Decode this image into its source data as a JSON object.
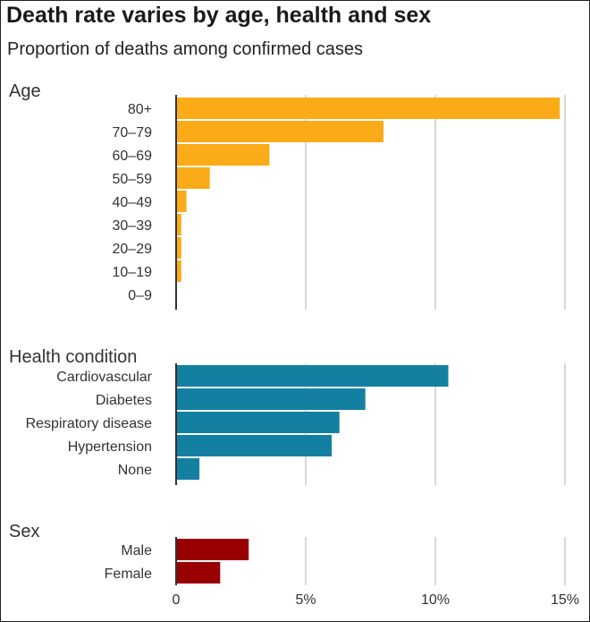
{
  "title": "Death rate varies by age, health and sex",
  "subtitle": "Proportion of deaths among confirmed cases",
  "colors": {
    "age": "#FBAB18",
    "health": "#1380A1",
    "sex": "#990000",
    "grid": "#cccccc",
    "axis": "#333333"
  },
  "chart_data": {
    "type": "bar",
    "orientation": "horizontal",
    "unit": "%",
    "xlim": [
      0,
      15
    ],
    "x_ticks": [
      {
        "value": 0,
        "label": "0"
      },
      {
        "value": 5,
        "label": "5%"
      },
      {
        "value": 10,
        "label": "10%"
      },
      {
        "value": 15,
        "label": "15%"
      }
    ],
    "grid": true,
    "groups": [
      {
        "key": "age",
        "heading": "Age",
        "categories": [
          "80+",
          "70–79",
          "60–69",
          "50–59",
          "40–49",
          "30–39",
          "20–29",
          "10–19",
          "0–9"
        ],
        "values": [
          14.8,
          8.0,
          3.6,
          1.3,
          0.4,
          0.2,
          0.2,
          0.2,
          0
        ]
      },
      {
        "key": "health",
        "heading": "Health condition",
        "categories": [
          "Cardiovascular",
          "Diabetes",
          "Respiratory disease",
          "Hypertension",
          "None"
        ],
        "values": [
          10.5,
          7.3,
          6.3,
          6.0,
          0.9
        ]
      },
      {
        "key": "sex",
        "heading": "Sex",
        "categories": [
          "Male",
          "Female"
        ],
        "values": [
          2.8,
          1.7
        ]
      }
    ]
  }
}
